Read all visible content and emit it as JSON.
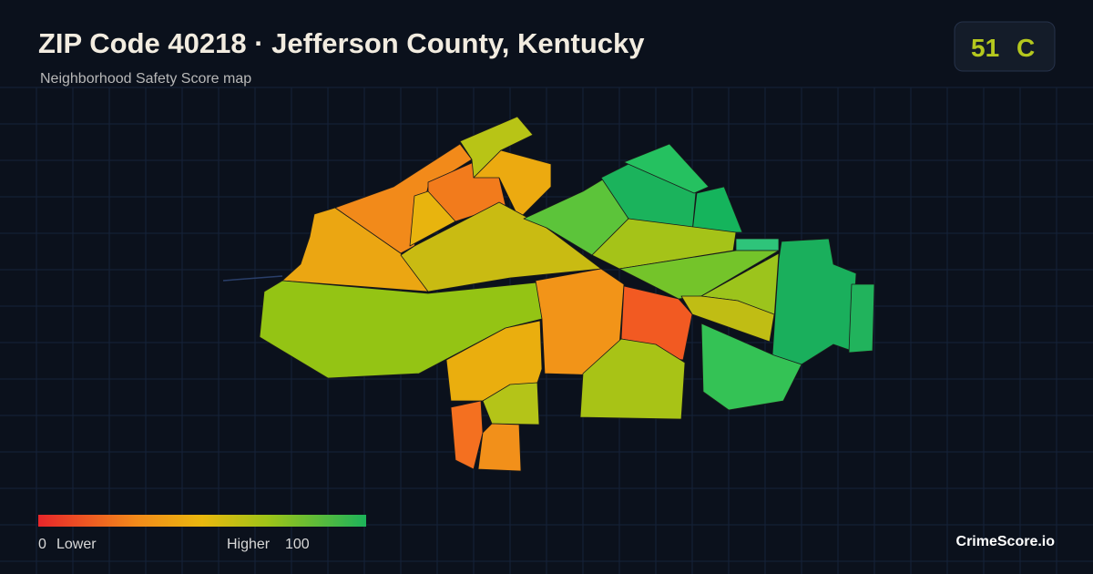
{
  "header": {
    "title": "ZIP Code 40218 · Jefferson County, Kentucky",
    "subtitle": "Neighborhood Safety Score map"
  },
  "score": {
    "value": 51,
    "grade": "C"
  },
  "legend": {
    "min": 0,
    "min_label": "Lower",
    "max_label": "Higher",
    "max": 100
  },
  "brand": "CrimeScore.io"
}
